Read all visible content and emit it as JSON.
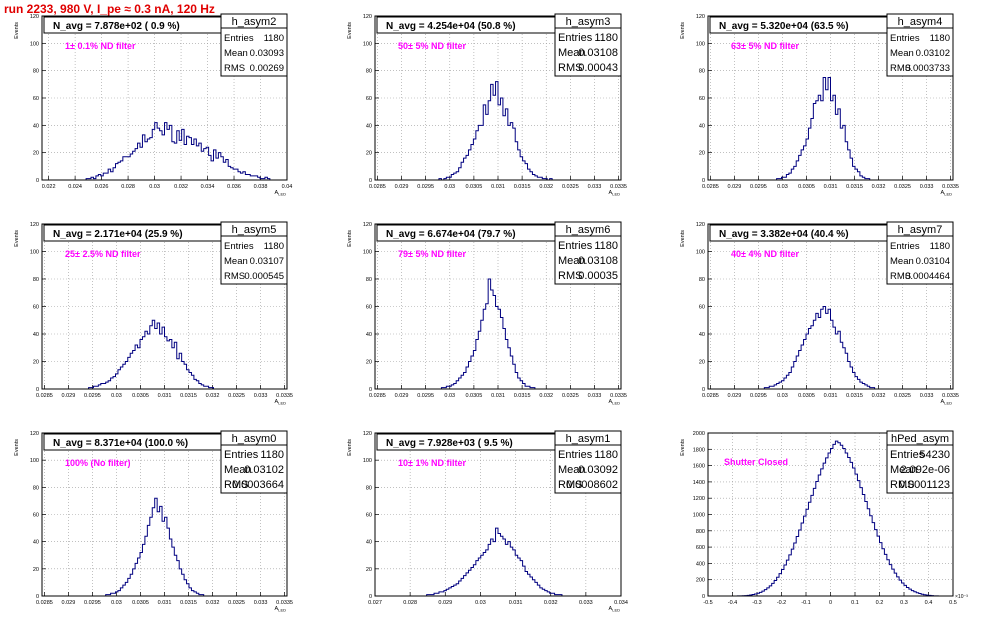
{
  "page": {
    "run_title": "run 2233,   980 V, I_pe ≈ 0.3 nA, 120 Hz"
  },
  "colors": {
    "hist_line": "#000080",
    "filter_label": "#ff00ff",
    "run_title": "#e00000",
    "grid": "#9a9a9a",
    "axis": "#000000"
  },
  "chart_data": [
    {
      "type": "histogram",
      "name": "h_asym2",
      "ylabel": "Events",
      "xlabel": "A_LED",
      "ylim": [
        0,
        120
      ],
      "yticks": [
        "0",
        "20",
        "40",
        "60",
        "80",
        "100",
        "120"
      ],
      "xlim": [
        0.0215,
        0.04
      ],
      "xticks": [
        "0.022",
        "0.024",
        "0.026",
        "0.028",
        "0.03",
        "0.032",
        "0.034",
        "0.036",
        "0.038",
        "0.04"
      ],
      "naverage": "N_avg = 7.878e+02 ( 0.9 %)",
      "filter": "1± 0.1% ND filter",
      "stats": [
        {
          "label": "Entries",
          "value": "1180"
        },
        {
          "label": "Mean",
          "value": "0.03093"
        },
        {
          "label": "RMS",
          "value": "0.00269"
        }
      ],
      "bins_x0": 0.0215,
      "bins_x1": 0.04,
      "values": [
        0,
        0,
        0,
        0,
        0,
        0,
        0,
        0,
        0,
        0,
        0,
        0,
        0,
        0,
        0,
        0,
        0,
        0,
        1,
        1,
        2,
        1,
        3,
        4,
        3,
        5,
        5,
        8,
        6,
        9,
        12,
        13,
        14,
        17,
        17,
        17,
        19,
        21,
        23,
        27,
        24,
        33,
        28,
        30,
        31,
        37,
        42,
        38,
        36,
        33,
        42,
        37,
        40,
        28,
        27,
        36,
        29,
        37,
        26,
        32,
        31,
        26,
        30,
        25,
        27,
        21,
        23,
        24,
        18,
        14,
        22,
        16,
        20,
        17,
        13,
        15,
        10,
        9,
        8,
        8,
        6,
        5,
        6,
        4,
        4,
        3,
        3,
        3,
        2,
        1,
        1,
        2,
        1,
        0,
        0,
        0,
        0,
        0,
        0,
        0
      ]
    },
    {
      "type": "histogram",
      "name": "h_asym3",
      "ylabel": "Events",
      "xlabel": "A_LED",
      "ylim": [
        0,
        120
      ],
      "yticks": [
        "0",
        "20",
        "40",
        "60",
        "80",
        "100",
        "120"
      ],
      "xlim": [
        0.02845,
        0.03355
      ],
      "xticks": [
        "0.0285",
        "0.029",
        "0.0295",
        "0.03",
        "0.0305",
        "0.031",
        "0.0315",
        "0.032",
        "0.0325",
        "0.033",
        "0.0335"
      ],
      "naverage": "N_avg = 4.254e+04 (50.8 %)",
      "filter": "50± 5% ND filter",
      "stats": [
        {
          "label": "Entries",
          "value": "1180"
        },
        {
          "label": "Mean",
          "value": "0.03108"
        },
        {
          "label": "RMS",
          "value": "0.00043"
        }
      ],
      "bins_x0": 0.02845,
      "bins_x1": 0.03355,
      "values": [
        0,
        0,
        0,
        0,
        0,
        0,
        0,
        0,
        0,
        0,
        0,
        0,
        0,
        0,
        0,
        0,
        0,
        0,
        0,
        0,
        0,
        0,
        0,
        0,
        0,
        0,
        1,
        0,
        1,
        2,
        2,
        4,
        5,
        6,
        9,
        13,
        16,
        18,
        22,
        26,
        30,
        36,
        40,
        40,
        55,
        48,
        58,
        70,
        62,
        72,
        55,
        60,
        47,
        52,
        40,
        42,
        38,
        28,
        22,
        17,
        14,
        12,
        8,
        6,
        4,
        3,
        2,
        2,
        1,
        1,
        0,
        1,
        0,
        0,
        0,
        0,
        0,
        0,
        0,
        0,
        0,
        0,
        0,
        0,
        0,
        0,
        0,
        0,
        0,
        0,
        0,
        0,
        0,
        0,
        0,
        0,
        0,
        0,
        0,
        0
      ]
    },
    {
      "type": "histogram",
      "name": "h_asym4",
      "ylabel": "Events",
      "xlabel": "A_LED",
      "ylim": [
        0,
        120
      ],
      "yticks": [
        "0",
        "20",
        "40",
        "60",
        "80",
        "100",
        "120"
      ],
      "xlim": [
        0.02845,
        0.03355
      ],
      "xticks": [
        "0.0285",
        "0.029",
        "0.0295",
        "0.03",
        "0.0305",
        "0.031",
        "0.0315",
        "0.032",
        "0.0325",
        "0.033",
        "0.0335"
      ],
      "naverage": "N_avg = 5.320e+04 (63.5 %)",
      "filter": "63± 5% ND filter",
      "stats": [
        {
          "label": "Entries",
          "value": "1180"
        },
        {
          "label": "Mean",
          "value": "0.03102"
        },
        {
          "label": "RMS",
          "value": "0.0003733"
        }
      ],
      "bins_x0": 0.02845,
      "bins_x1": 0.03355,
      "values": [
        0,
        0,
        0,
        0,
        0,
        0,
        0,
        0,
        0,
        0,
        0,
        0,
        0,
        0,
        0,
        0,
        0,
        0,
        0,
        0,
        0,
        0,
        0,
        0,
        0,
        0,
        0,
        0,
        1,
        1,
        2,
        2,
        4,
        5,
        8,
        10,
        14,
        18,
        22,
        25,
        30,
        38,
        45,
        56,
        58,
        62,
        58,
        75,
        66,
        75,
        58,
        62,
        48,
        52,
        38,
        40,
        28,
        22,
        16,
        10,
        8,
        6,
        3,
        2,
        1,
        1,
        0,
        0,
        0,
        0,
        0,
        0,
        0,
        0,
        0,
        0,
        0,
        0,
        0,
        0,
        0,
        0,
        0,
        0,
        0,
        0,
        0,
        0,
        0,
        0,
        0,
        0,
        0,
        0,
        0,
        0,
        0,
        0,
        0,
        0
      ]
    },
    {
      "type": "histogram",
      "name": "h_asym5",
      "ylabel": "Events",
      "xlabel": "A_LED",
      "ylim": [
        0,
        120
      ],
      "yticks": [
        "0",
        "20",
        "40",
        "60",
        "80",
        "100",
        "120"
      ],
      "xlim": [
        0.02845,
        0.03355
      ],
      "xticks": [
        "0.0285",
        "0.029",
        "0.0295",
        "0.03",
        "0.0305",
        "0.031",
        "0.0315",
        "0.032",
        "0.0325",
        "0.033",
        "0.0335"
      ],
      "naverage": "N_avg = 2.171e+04 (25.9 %)",
      "filter": "25± 2.5% ND filter",
      "stats": [
        {
          "label": "Entries",
          "value": "1180"
        },
        {
          "label": "Mean",
          "value": "0.03107"
        },
        {
          "label": "RMS",
          "value": "0.000545"
        }
      ],
      "bins_x0": 0.02845,
      "bins_x1": 0.03355,
      "values": [
        0,
        0,
        0,
        0,
        0,
        0,
        0,
        0,
        0,
        0,
        0,
        0,
        0,
        0,
        0,
        0,
        0,
        0,
        0,
        1,
        1,
        2,
        2,
        3,
        4,
        4,
        5,
        6,
        8,
        9,
        11,
        14,
        16,
        18,
        20,
        23,
        26,
        28,
        32,
        30,
        36,
        38,
        42,
        40,
        46,
        50,
        44,
        48,
        40,
        45,
        38,
        35,
        36,
        30,
        34,
        22,
        26,
        20,
        18,
        14,
        12,
        10,
        7,
        6,
        4,
        3,
        2,
        2,
        1,
        1,
        0,
        0,
        0,
        0,
        0,
        0,
        0,
        0,
        0,
        0,
        0,
        0,
        0,
        0,
        0,
        0,
        0,
        0,
        0,
        0,
        0,
        0,
        0,
        0,
        0,
        0,
        0,
        0,
        0,
        0
      ]
    },
    {
      "type": "histogram",
      "name": "h_asym6",
      "ylabel": "Events",
      "xlabel": "A_LED",
      "ylim": [
        0,
        120
      ],
      "yticks": [
        "0",
        "20",
        "40",
        "60",
        "80",
        "100",
        "120"
      ],
      "xlim": [
        0.02845,
        0.03355
      ],
      "xticks": [
        "0.0285",
        "0.029",
        "0.0295",
        "0.03",
        "0.0305",
        "0.031",
        "0.0315",
        "0.032",
        "0.0325",
        "0.033",
        "0.0335"
      ],
      "naverage": "N_avg = 6.674e+04 (79.7 %)",
      "filter": "79± 5% ND filter",
      "stats": [
        {
          "label": "Entries",
          "value": "1180"
        },
        {
          "label": "Mean",
          "value": "0.03108"
        },
        {
          "label": "RMS",
          "value": "0.00035"
        }
      ],
      "bins_x0": 0.02845,
      "bins_x1": 0.03355,
      "values": [
        0,
        0,
        0,
        0,
        0,
        0,
        0,
        0,
        0,
        0,
        0,
        0,
        0,
        0,
        0,
        0,
        0,
        0,
        0,
        0,
        0,
        0,
        0,
        0,
        0,
        0,
        0,
        1,
        1,
        2,
        2,
        3,
        4,
        6,
        8,
        10,
        12,
        16,
        20,
        24,
        28,
        36,
        42,
        50,
        58,
        62,
        80,
        72,
        68,
        60,
        58,
        52,
        44,
        36,
        30,
        24,
        18,
        12,
        8,
        6,
        4,
        2,
        2,
        1,
        1,
        0,
        0,
        0,
        0,
        0,
        0,
        0,
        0,
        0,
        0,
        0,
        0,
        0,
        0,
        0,
        0,
        0,
        0,
        0,
        0,
        0,
        0,
        0,
        0,
        0,
        0,
        0,
        0,
        0,
        0,
        0,
        0,
        0,
        0,
        0
      ]
    },
    {
      "type": "histogram",
      "name": "h_asym7",
      "ylabel": "Events",
      "xlabel": "A_LED",
      "ylim": [
        0,
        120
      ],
      "yticks": [
        "0",
        "20",
        "40",
        "60",
        "80",
        "100",
        "120"
      ],
      "xlim": [
        0.02845,
        0.03355
      ],
      "xticks": [
        "0.0285",
        "0.029",
        "0.0295",
        "0.03",
        "0.0305",
        "0.031",
        "0.0315",
        "0.032",
        "0.0325",
        "0.033",
        "0.0335"
      ],
      "naverage": "N_avg = 3.382e+04 (40.4 %)",
      "filter": "40± 4% ND filter",
      "stats": [
        {
          "label": "Entries",
          "value": "1180"
        },
        {
          "label": "Mean",
          "value": "0.03104"
        },
        {
          "label": "RMS",
          "value": "0.0004464"
        }
      ],
      "bins_x0": 0.02845,
      "bins_x1": 0.03355,
      "values": [
        0,
        0,
        0,
        0,
        0,
        0,
        0,
        0,
        0,
        0,
        0,
        0,
        0,
        0,
        0,
        0,
        0,
        0,
        0,
        0,
        0,
        0,
        0,
        1,
        1,
        2,
        2,
        3,
        4,
        5,
        6,
        8,
        10,
        12,
        16,
        20,
        24,
        28,
        32,
        36,
        40,
        44,
        46,
        50,
        55,
        52,
        58,
        60,
        55,
        58,
        50,
        45,
        40,
        42,
        34,
        30,
        26,
        20,
        16,
        12,
        9,
        7,
        5,
        4,
        3,
        2,
        1,
        1,
        0,
        0,
        0,
        0,
        0,
        0,
        0,
        0,
        0,
        0,
        0,
        0,
        0,
        0,
        0,
        0,
        0,
        0,
        0,
        0,
        0,
        0,
        0,
        0,
        0,
        0,
        0,
        0,
        0,
        0,
        0,
        0
      ]
    },
    {
      "type": "histogram",
      "name": "h_asym0",
      "ylabel": "Events",
      "xlabel": "A_LED",
      "ylim": [
        0,
        120
      ],
      "yticks": [
        "0",
        "20",
        "40",
        "60",
        "80",
        "100",
        "120"
      ],
      "xlim": [
        0.02845,
        0.03355
      ],
      "xticks": [
        "0.0285",
        "0.029",
        "0.0295",
        "0.03",
        "0.0305",
        "0.031",
        "0.0315",
        "0.032",
        "0.0325",
        "0.033",
        "0.0335"
      ],
      "naverage": "N_avg = 8.371e+04 (100.0 %)",
      "filter": "100% (No filter)",
      "stats": [
        {
          "label": "Entries",
          "value": "1180"
        },
        {
          "label": "Mean",
          "value": "0.03102"
        },
        {
          "label": "RMS",
          "value": "0.0003664"
        }
      ],
      "bins_x0": 0.02845,
      "bins_x1": 0.03355,
      "values": [
        0,
        0,
        0,
        0,
        0,
        0,
        0,
        0,
        0,
        0,
        0,
        0,
        0,
        0,
        0,
        0,
        0,
        0,
        0,
        0,
        0,
        0,
        0,
        0,
        0,
        0,
        1,
        1,
        2,
        2,
        3,
        4,
        6,
        8,
        10,
        13,
        16,
        20,
        24,
        28,
        32,
        38,
        44,
        52,
        58,
        65,
        72,
        62,
        66,
        55,
        58,
        50,
        42,
        36,
        30,
        26,
        20,
        16,
        12,
        9,
        6,
        4,
        3,
        2,
        1,
        1,
        0,
        0,
        0,
        0,
        0,
        0,
        0,
        0,
        0,
        0,
        0,
        0,
        0,
        0,
        0,
        0,
        0,
        0,
        0,
        0,
        0,
        0,
        0,
        0,
        0,
        0,
        0,
        0,
        0,
        0,
        0,
        0,
        0,
        0
      ]
    },
    {
      "type": "histogram",
      "name": "h_asym1",
      "ylabel": "Events",
      "xlabel": "A_LED",
      "ylim": [
        0,
        120
      ],
      "yticks": [
        "0",
        "20",
        "40",
        "60",
        "80",
        "100",
        "120"
      ],
      "xlim": [
        0.027,
        0.034
      ],
      "xticks": [
        "0.027",
        "0.028",
        "0.029",
        "0.03",
        "0.031",
        "0.032",
        "0.033",
        "0.034"
      ],
      "naverage": "N_avg = 7.928e+03 ( 9.5 %)",
      "filter": "10± 1% ND filter",
      "stats": [
        {
          "label": "Entries",
          "value": "1180"
        },
        {
          "label": "Mean",
          "value": "0.03092"
        },
        {
          "label": "RMS",
          "value": "0.0008602"
        }
      ],
      "bins_x0": 0.027,
      "bins_x1": 0.034,
      "values": [
        0,
        0,
        0,
        0,
        0,
        0,
        0,
        0,
        0,
        0,
        0,
        0,
        0,
        0,
        0,
        0,
        0,
        0,
        0,
        0,
        0,
        1,
        1,
        1,
        2,
        2,
        3,
        3,
        4,
        5,
        6,
        7,
        8,
        9,
        11,
        13,
        15,
        17,
        19,
        21,
        23,
        26,
        28,
        30,
        32,
        34,
        38,
        42,
        40,
        50,
        46,
        44,
        42,
        38,
        40,
        36,
        34,
        30,
        28,
        26,
        22,
        18,
        16,
        14,
        12,
        10,
        8,
        6,
        5,
        4,
        3,
        2,
        2,
        1,
        1,
        1,
        0,
        0,
        0,
        0,
        0,
        0,
        0,
        0,
        0,
        0,
        0,
        0,
        0,
        0,
        0,
        0,
        0,
        0,
        0,
        0,
        0,
        0,
        0,
        0
      ]
    },
    {
      "type": "histogram",
      "name": "hPed_asym",
      "ylabel": "Events",
      "xlabel": "",
      "ylim": [
        0,
        2000
      ],
      "yticks": [
        "0",
        "200",
        "400",
        "600",
        "800",
        "1000",
        "1200",
        "1400",
        "1600",
        "1800",
        "2000"
      ],
      "xlim": [
        -0.5,
        0.5
      ],
      "xticks": [
        "-0.5",
        "-0.4",
        "-0.3",
        "-0.2",
        "-0.1",
        "0",
        "0.1",
        "0.2",
        "0.3",
        "0.4",
        "0.5"
      ],
      "xscale": "×10⁻³",
      "naverage": "",
      "filter": "Shutter Closed",
      "stats": [
        {
          "label": "Entries",
          "value": "54230"
        },
        {
          "label": "Mean",
          "value": "2.092e-06"
        },
        {
          "label": "RMS",
          "value": "0.0001123"
        }
      ],
      "bins_x0": -0.5,
      "bins_x1": 0.5,
      "values": [
        0,
        0,
        0,
        0,
        0,
        0,
        0,
        0,
        0,
        0,
        0,
        0,
        1,
        2,
        3,
        5,
        8,
        12,
        18,
        25,
        34,
        45,
        60,
        78,
        100,
        125,
        155,
        190,
        230,
        275,
        325,
        380,
        440,
        505,
        575,
        650,
        730,
        810,
        895,
        980,
        1065,
        1150,
        1235,
        1320,
        1405,
        1485,
        1560,
        1630,
        1695,
        1755,
        1810,
        1860,
        1900,
        1880,
        1850,
        1810,
        1755,
        1700,
        1640,
        1570,
        1495,
        1415,
        1330,
        1245,
        1160,
        1070,
        985,
        900,
        815,
        735,
        655,
        580,
        510,
        445,
        385,
        330,
        280,
        235,
        195,
        160,
        130,
        105,
        84,
        66,
        52,
        40,
        30,
        22,
        16,
        11,
        7,
        4,
        2,
        1,
        0,
        0,
        0,
        0,
        0,
        0
      ]
    }
  ]
}
